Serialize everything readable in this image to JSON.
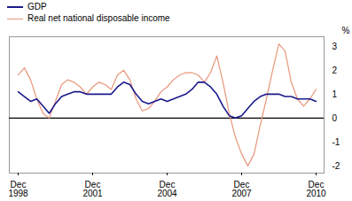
{
  "chart_data": {
    "type": "line",
    "ylabel": "%",
    "categories": [
      "Dec\n1998",
      null,
      null,
      null,
      null,
      null,
      null,
      null,
      null,
      null,
      null,
      null,
      "Dec\n2001",
      null,
      null,
      null,
      null,
      null,
      null,
      null,
      null,
      null,
      null,
      null,
      "Dec\n2004",
      null,
      null,
      null,
      null,
      null,
      null,
      null,
      null,
      null,
      null,
      null,
      "Dec\n2007",
      null,
      null,
      null,
      null,
      null,
      null,
      null,
      null,
      null,
      null,
      null,
      "Dec\n2010"
    ],
    "series": [
      {
        "name": "GDP",
        "color": "#1a1a8c",
        "values": [
          1.1,
          0.9,
          0.7,
          0.8,
          0.5,
          0.2,
          0.6,
          0.9,
          1.0,
          1.1,
          1.1,
          1.0,
          1.0,
          1.0,
          1.0,
          1.0,
          1.3,
          1.5,
          1.4,
          1.0,
          0.7,
          0.6,
          0.7,
          0.8,
          0.7,
          0.8,
          0.9,
          1.0,
          1.2,
          1.5,
          1.5,
          1.3,
          1.0,
          0.5,
          0.1,
          0.0,
          0.1,
          0.4,
          0.7,
          0.9,
          1.0,
          1.0,
          1.0,
          0.9,
          0.9,
          0.8,
          0.8,
          0.8,
          0.7
        ]
      },
      {
        "name": "Real net national disposable income",
        "color": "#E8967A",
        "values": [
          1.8,
          2.1,
          1.6,
          0.8,
          0.2,
          0.0,
          0.7,
          1.4,
          1.6,
          1.5,
          1.3,
          1.0,
          1.3,
          1.5,
          1.4,
          1.2,
          1.8,
          2.0,
          1.6,
          0.8,
          0.3,
          0.4,
          0.7,
          1.1,
          1.3,
          1.6,
          1.8,
          1.9,
          1.9,
          1.8,
          1.5,
          1.9,
          2.6,
          1.5,
          0.2,
          -0.8,
          -1.5,
          -2.0,
          -1.5,
          -0.3,
          0.8,
          2.0,
          3.1,
          2.8,
          1.5,
          0.8,
          0.5,
          0.8,
          1.2
        ]
      }
    ],
    "ylim": [
      -2.3,
      3.4
    ],
    "yticks": [
      -2,
      -1,
      0,
      1,
      2,
      3
    ],
    "grid": false,
    "legend": "upper left"
  }
}
